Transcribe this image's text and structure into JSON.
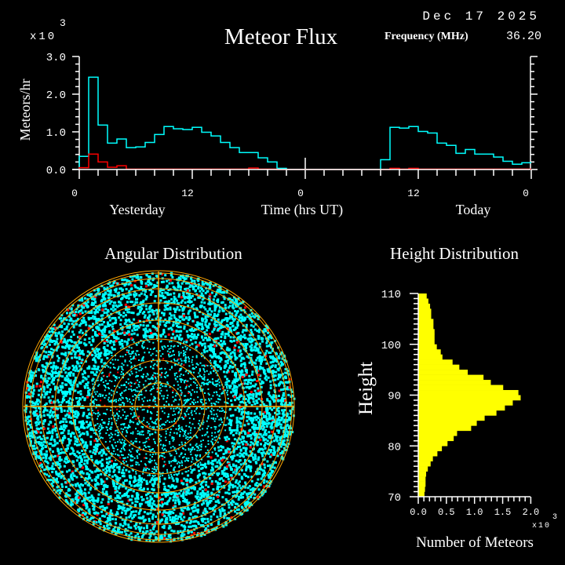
{
  "header": {
    "title": "Meteor Flux",
    "date": "Dec 17 2025",
    "frequency_label": "Frequency (MHz)",
    "frequency_value": "36.20"
  },
  "colors": {
    "background": "#000000",
    "axes": "#ffffff",
    "all_meteors": "#00ffff",
    "secondary": "#ff0000",
    "histogram": "#ffff00",
    "grid": "#ffa500"
  },
  "chart_data": [
    {
      "type": "line",
      "title": "Meteor Flux",
      "ylabel": "Meteors/hr",
      "yscale_label": "x10",
      "yscale_exp": "3",
      "xlabel": "Time (hrs UT)",
      "day_labels": [
        "Yesterday",
        "Today"
      ],
      "ylim": [
        0,
        3.0
      ],
      "yticks": [
        "0.0",
        "1.0",
        "2.0",
        "3.0"
      ],
      "xticks": [
        "0",
        "12",
        "0",
        "12",
        "0"
      ],
      "step": true,
      "x_hours": [
        0,
        1,
        2,
        3,
        4,
        5,
        6,
        7,
        8,
        9,
        10,
        11,
        12,
        13,
        14,
        15,
        16,
        17,
        18,
        19,
        20,
        21,
        22,
        23,
        24,
        25,
        26,
        27,
        28,
        29,
        30,
        31,
        32,
        33,
        34,
        35,
        36,
        37,
        38,
        39,
        40,
        41,
        42,
        43,
        44,
        45,
        46,
        47
      ],
      "series": [
        {
          "color": "#00ffff",
          "values": [
            0.35,
            2.45,
            1.18,
            0.7,
            0.81,
            0.58,
            0.6,
            0.72,
            0.93,
            1.14,
            1.08,
            1.06,
            1.12,
            0.99,
            0.89,
            0.72,
            0.58,
            0.45,
            0.45,
            0.31,
            0.2,
            0.03,
            0,
            0,
            0,
            0,
            0,
            0,
            0,
            0,
            0,
            0,
            0.26,
            1.12,
            1.1,
            1.14,
            1.01,
            0.97,
            0.7,
            0.64,
            0.43,
            0.53,
            0.41,
            0.41,
            0.33,
            0.22,
            0.14,
            0.18
          ]
        },
        {
          "color": "#ff0000",
          "values": [
            0.05,
            0.41,
            0.2,
            0.06,
            0.1,
            0.01,
            0.01,
            0.01,
            0.01,
            0.01,
            0.01,
            0.01,
            0.01,
            0.01,
            0.01,
            0.01,
            0.01,
            0.01,
            0.04,
            0.01,
            0.01,
            0,
            0,
            0,
            0,
            0,
            0,
            0,
            0,
            0,
            0,
            0,
            0,
            0.03,
            0.01,
            0.03,
            0.01,
            0.01,
            0.01,
            0.01,
            0.01,
            0.01,
            0.01,
            0.01,
            0.01,
            0.01,
            0.01,
            0.01
          ]
        }
      ]
    },
    {
      "type": "scatter",
      "title": "Angular Distribution",
      "projection": "polar sky map",
      "grid": true
    },
    {
      "type": "bar",
      "orientation": "horizontal",
      "title": "Height Distribution",
      "ylabel": "Height",
      "xlabel": "Number of Meteors",
      "xscale_label": "x10",
      "xscale_exp": "3",
      "xlim": [
        0,
        2.0
      ],
      "ylim": [
        70,
        110
      ],
      "xticks": [
        "0.0",
        "0.5",
        "1.0",
        "1.5",
        "2.0"
      ],
      "yticks": [
        "70",
        "80",
        "90",
        "100",
        "110"
      ],
      "bin_lower_edges": [
        70,
        71,
        72,
        73,
        74,
        75,
        76,
        77,
        78,
        79,
        80,
        81,
        82,
        83,
        84,
        85,
        86,
        87,
        88,
        89,
        90,
        91,
        92,
        93,
        94,
        95,
        96,
        97,
        98,
        99,
        100,
        101,
        102,
        103,
        104,
        105,
        106,
        107,
        108,
        109
      ],
      "values": [
        0.11,
        0.12,
        0.13,
        0.13,
        0.14,
        0.17,
        0.22,
        0.26,
        0.34,
        0.42,
        0.52,
        0.63,
        0.69,
        0.94,
        1.04,
        1.18,
        1.39,
        1.54,
        1.68,
        1.82,
        1.78,
        1.51,
        1.29,
        1.16,
        0.88,
        0.73,
        0.61,
        0.43,
        0.4,
        0.33,
        0.29,
        0.29,
        0.29,
        0.27,
        0.27,
        0.23,
        0.23,
        0.21,
        0.18,
        0.15
      ]
    }
  ]
}
